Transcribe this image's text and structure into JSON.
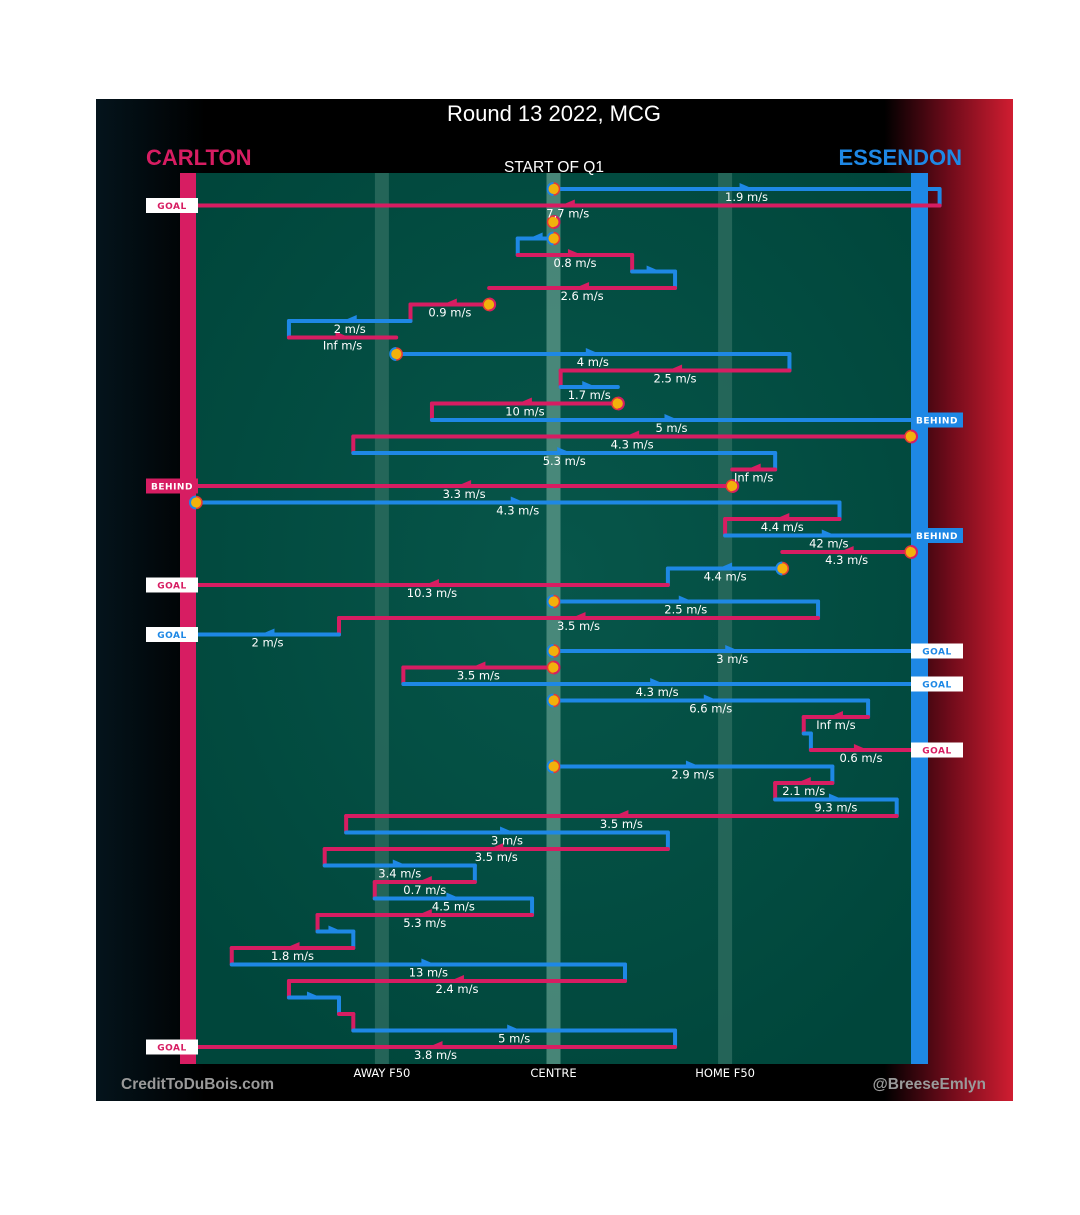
{
  "chart_data": {
    "type": "line",
    "title": "Round 13 2022, MCG",
    "subtitle": "START OF Q1",
    "teams": {
      "left": {
        "name": "CARLTON",
        "color": "#d71d62"
      },
      "right": {
        "name": "ESSENDON",
        "color": "#1e88e5"
      }
    },
    "x_labels": [
      {
        "label": "AWAY F50",
        "x": 0.26
      },
      {
        "label": "CENTRE",
        "x": 0.5
      },
      {
        "label": "HOME F50",
        "x": 0.74
      }
    ],
    "credits": {
      "left": "CreditToDuBois.com",
      "right": "@BreeseEmlyn"
    },
    "colors": {
      "pitch": "#004d40",
      "ball": "#f2b10c",
      "ball_stroke": "#e53935"
    },
    "chains": [
      {
        "team": "right",
        "start": 0.5,
        "segments": [
          {
            "x0": 0.5,
            "x1": 1.04,
            "speed": "1.9 m/s"
          },
          {
            "x0": 1.04,
            "x1": 0.0,
            "speed": "7.7 m/s"
          }
        ],
        "outcome": "GOAL"
      },
      {
        "team": "left",
        "start": 0.5,
        "segments": [],
        "outcome": ""
      },
      {
        "team": "right",
        "start": 0.5,
        "segments": [
          {
            "x0": 0.5,
            "x1": 0.45,
            "speed": ""
          },
          {
            "x0": 0.45,
            "x1": 0.61,
            "speed": "0.8 m/s"
          },
          {
            "x0": 0.61,
            "x1": 0.67,
            "speed": ""
          },
          {
            "x0": 0.67,
            "x1": 0.41,
            "speed": "2.6 m/s"
          }
        ],
        "outcome": ""
      },
      {
        "team": "left",
        "start": 0.41,
        "segments": [
          {
            "x0": 0.41,
            "x1": 0.3,
            "speed": "0.9 m/s"
          },
          {
            "x0": 0.3,
            "x1": 0.13,
            "speed": "2 m/s"
          },
          {
            "x0": 0.13,
            "x1": 0.28,
            "speed": "Inf m/s"
          }
        ],
        "outcome": ""
      },
      {
        "team": "right",
        "start": 0.28,
        "segments": [
          {
            "x0": 0.28,
            "x1": 0.83,
            "speed": "4 m/s"
          },
          {
            "x0": 0.83,
            "x1": 0.51,
            "speed": "2.5 m/s"
          },
          {
            "x0": 0.51,
            "x1": 0.59,
            "speed": "1.7 m/s"
          }
        ],
        "outcome": ""
      },
      {
        "team": "left",
        "start": 0.59,
        "segments": [
          {
            "x0": 0.59,
            "x1": 0.33,
            "speed": "10 m/s"
          },
          {
            "x0": 0.33,
            "x1": 1.0,
            "speed": "5 m/s"
          }
        ],
        "outcome": "BEHIND"
      },
      {
        "team": "left",
        "start": 1.0,
        "segments": [
          {
            "x0": 1.0,
            "x1": 0.22,
            "speed": "4.3 m/s"
          },
          {
            "x0": 0.22,
            "x1": 0.81,
            "speed": "5.3 m/s"
          },
          {
            "x0": 0.81,
            "x1": 0.75,
            "speed": "Inf m/s"
          }
        ],
        "outcome": ""
      },
      {
        "team": "left",
        "start": 0.75,
        "segments": [
          {
            "x0": 0.75,
            "x1": 0.0,
            "speed": "3.3 m/s"
          }
        ],
        "outcome": "BEHIND"
      },
      {
        "team": "right",
        "start": 0.0,
        "segments": [
          {
            "x0": 0.0,
            "x1": 0.9,
            "speed": "4.3 m/s"
          },
          {
            "x0": 0.9,
            "x1": 0.74,
            "speed": "4.4 m/s"
          },
          {
            "x0": 0.74,
            "x1": 1.03,
            "speed": "42 m/s"
          }
        ],
        "outcome": "BEHIND"
      },
      {
        "team": "left",
        "start": 1.0,
        "segments": [
          {
            "x0": 1.0,
            "x1": 0.82,
            "speed": "4.3 m/s"
          }
        ],
        "outcome": ""
      },
      {
        "team": "right",
        "start": 0.82,
        "segments": [
          {
            "x0": 0.82,
            "x1": 0.66,
            "speed": "4.4 m/s"
          },
          {
            "x0": 0.66,
            "x1": 0.0,
            "speed": "10.3 m/s"
          }
        ],
        "outcome": "GOAL"
      },
      {
        "team": "right",
        "start": 0.5,
        "segments": [
          {
            "x0": 0.5,
            "x1": 0.87,
            "speed": "2.5 m/s"
          },
          {
            "x0": 0.87,
            "x1": 0.2,
            "speed": "3.5 m/s"
          },
          {
            "x0": 0.2,
            "x1": 0.0,
            "speed": "2 m/s"
          }
        ],
        "outcome": "GOAL"
      },
      {
        "team": "right",
        "start": 0.5,
        "segments": [
          {
            "x0": 0.5,
            "x1": 1.0,
            "speed": "3 m/s"
          }
        ],
        "outcome": "GOAL"
      },
      {
        "team": "left",
        "start": 0.5,
        "segments": [
          {
            "x0": 0.5,
            "x1": 0.29,
            "speed": "3.5 m/s"
          },
          {
            "x0": 0.29,
            "x1": 1.0,
            "speed": "4.3 m/s"
          }
        ],
        "outcome": "GOAL"
      },
      {
        "team": "right",
        "start": 0.5,
        "segments": [
          {
            "x0": 0.5,
            "x1": 0.94,
            "speed": "6.6 m/s"
          },
          {
            "x0": 0.94,
            "x1": 0.85,
            "speed": "Inf m/s"
          },
          {
            "x0": 0.85,
            "x1": 0.86,
            "speed": ""
          },
          {
            "x0": 0.86,
            "x1": 1.0,
            "speed": "0.6 m/s"
          }
        ],
        "outcome": "GOAL"
      },
      {
        "team": "right",
        "start": 0.5,
        "segments": [
          {
            "x0": 0.5,
            "x1": 0.89,
            "speed": "2.9 m/s"
          },
          {
            "x0": 0.89,
            "x1": 0.81,
            "speed": "2.1 m/s"
          },
          {
            "x0": 0.81,
            "x1": 0.98,
            "speed": "9.3 m/s"
          },
          {
            "x0": 0.98,
            "x1": 0.21,
            "speed": "3.5 m/s"
          },
          {
            "x0": 0.21,
            "x1": 0.66,
            "speed": "3 m/s"
          },
          {
            "x0": 0.66,
            "x1": 0.18,
            "speed": "3.5 m/s"
          },
          {
            "x0": 0.18,
            "x1": 0.39,
            "speed": "3.4 m/s"
          },
          {
            "x0": 0.39,
            "x1": 0.25,
            "speed": "0.7 m/s"
          },
          {
            "x0": 0.25,
            "x1": 0.47,
            "speed": "4.5 m/s"
          },
          {
            "x0": 0.47,
            "x1": 0.17,
            "speed": "5.3 m/s"
          },
          {
            "x0": 0.17,
            "x1": 0.22,
            "speed": ""
          },
          {
            "x0": 0.22,
            "x1": 0.05,
            "speed": "1.8 m/s"
          },
          {
            "x0": 0.05,
            "x1": 0.6,
            "speed": "13 m/s"
          },
          {
            "x0": 0.6,
            "x1": 0.13,
            "speed": "2.4 m/s"
          },
          {
            "x0": 0.13,
            "x1": 0.2,
            "speed": ""
          },
          {
            "x0": 0.2,
            "x1": 0.22,
            "speed": ""
          },
          {
            "x0": 0.22,
            "x1": 0.67,
            "speed": "5 m/s"
          },
          {
            "x0": 0.67,
            "x1": 0.0,
            "speed": "3.8 m/s"
          }
        ],
        "outcome": "GOAL"
      }
    ]
  }
}
